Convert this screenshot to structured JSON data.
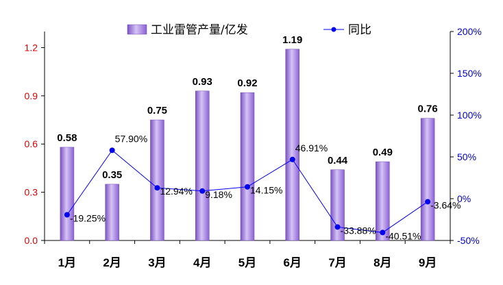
{
  "chart_data": {
    "type": "bar",
    "categories": [
      "1月",
      "2月",
      "3月",
      "4月",
      "5月",
      "6月",
      "7月",
      "8月",
      "9月"
    ],
    "series": [
      {
        "name": "工业雷管产量/亿发",
        "type": "bar",
        "axis": "left",
        "values": [
          0.58,
          0.35,
          0.75,
          0.93,
          0.92,
          1.19,
          0.44,
          0.49,
          0.76
        ],
        "labels": [
          "0.58",
          "0.35",
          "0.75",
          "0.93",
          "0.92",
          "1.19",
          "0.44",
          "0.49",
          "0.76"
        ]
      },
      {
        "name": "同比",
        "type": "line",
        "axis": "right",
        "values": [
          -19.25,
          57.9,
          12.94,
          9.18,
          14.15,
          46.91,
          -33.88,
          -40.51,
          -3.64
        ],
        "labels": [
          "-19.25%",
          "57.90%",
          "12.94%",
          "9.18%",
          "14.15%",
          "46.91%",
          "-33.88%",
          "-40.51%",
          "-3.64%"
        ]
      }
    ],
    "y_left": {
      "range": [
        0,
        1.3
      ],
      "ticks": [
        0.0,
        0.3,
        0.6,
        0.9,
        1.2
      ],
      "tick_labels": [
        "0.0",
        "0.3",
        "0.6",
        "0.9",
        "1.2"
      ],
      "color": "#e00000"
    },
    "y_right": {
      "range": [
        -50,
        200
      ],
      "ticks": [
        -50,
        0,
        50,
        100,
        150,
        200
      ],
      "tick_labels": [
        "-50%",
        "0%",
        "50%",
        "100%",
        "150%",
        "200%"
      ],
      "color": "#0000cc"
    },
    "legend": "top",
    "grid": false,
    "colors": {
      "bar_light": "#d6c4f5",
      "bar_mid": "#a57ee6",
      "bar_dark": "#7a52c4",
      "line": "#0000ff",
      "marker": "#0000ee"
    }
  }
}
